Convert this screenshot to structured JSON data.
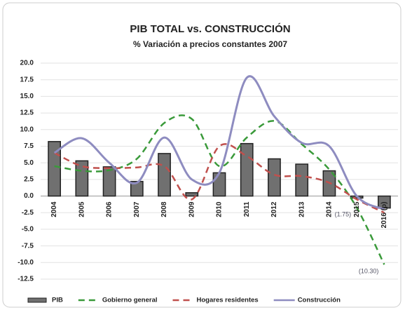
{
  "chart_data": {
    "type": "bar_line",
    "title": "PIB TOTAL vs. CONSTRUCCIÓN",
    "subtitle": "% Variación a precios constantes 2007",
    "categories": [
      "2004",
      "2005",
      "2006",
      "2007",
      "2008",
      "2009",
      "2010",
      "2011",
      "2012",
      "2013",
      "2014",
      "2015",
      "2016 (p)"
    ],
    "series": [
      {
        "name": "PIB",
        "type": "bar",
        "color": "#707070",
        "values": [
          8.2,
          5.3,
          4.4,
          2.2,
          6.4,
          0.5,
          3.5,
          7.9,
          5.6,
          4.8,
          3.8,
          -0.3,
          -1.8
        ]
      },
      {
        "name": "Gobierno general",
        "type": "line",
        "dash": "dashed",
        "color": "#3a9a3a",
        "values": [
          4.5,
          3.8,
          3.9,
          5.6,
          11.0,
          11.6,
          4.5,
          8.8,
          11.3,
          7.8,
          4.0,
          -1.75,
          -10.3
        ]
      },
      {
        "name": "Hogares residentes",
        "type": "line",
        "dash": "dashed",
        "color": "#c0504d",
        "values": [
          6.5,
          4.5,
          4.2,
          4.3,
          4.5,
          -0.5,
          7.5,
          6.0,
          3.2,
          3.0,
          2.0,
          -0.5,
          -2.5
        ]
      },
      {
        "name": "Construcción",
        "type": "line",
        "dash": "solid",
        "color": "#8e8cc0",
        "values": [
          6.5,
          8.7,
          5.0,
          2.0,
          8.8,
          2.5,
          3.5,
          17.8,
          12.0,
          8.0,
          7.5,
          0.0,
          -2.0
        ]
      }
    ],
    "annotations": [
      {
        "text": "(1.75)",
        "series": 1,
        "index": 11
      },
      {
        "text": "(10.30)",
        "series": 1,
        "index": 12
      }
    ],
    "ylim": [
      -12.5,
      20
    ],
    "yticks": [
      {
        "value": -12.5,
        "label": "-12.5"
      },
      {
        "value": -10,
        "label": "-10.0"
      },
      {
        "value": -7.5,
        "label": "-7.5"
      },
      {
        "value": -5,
        "label": "-5.0"
      },
      {
        "value": -2.5,
        "label": "-2.5"
      },
      {
        "value": 0,
        "label": "0.0"
      },
      {
        "value": 2.5,
        "label": "2.5"
      },
      {
        "value": 5,
        "label": "5.0"
      },
      {
        "value": 7.5,
        "label": "7.5"
      },
      {
        "value": 10,
        "label": "10.0"
      },
      {
        "value": 12.5,
        "label": "12.5"
      },
      {
        "value": 15,
        "label": "15.0"
      },
      {
        "value": 17.5,
        "label": "17.5"
      },
      {
        "value": 20,
        "label": "20.0"
      }
    ],
    "grid": true,
    "legend": "bottom"
  }
}
